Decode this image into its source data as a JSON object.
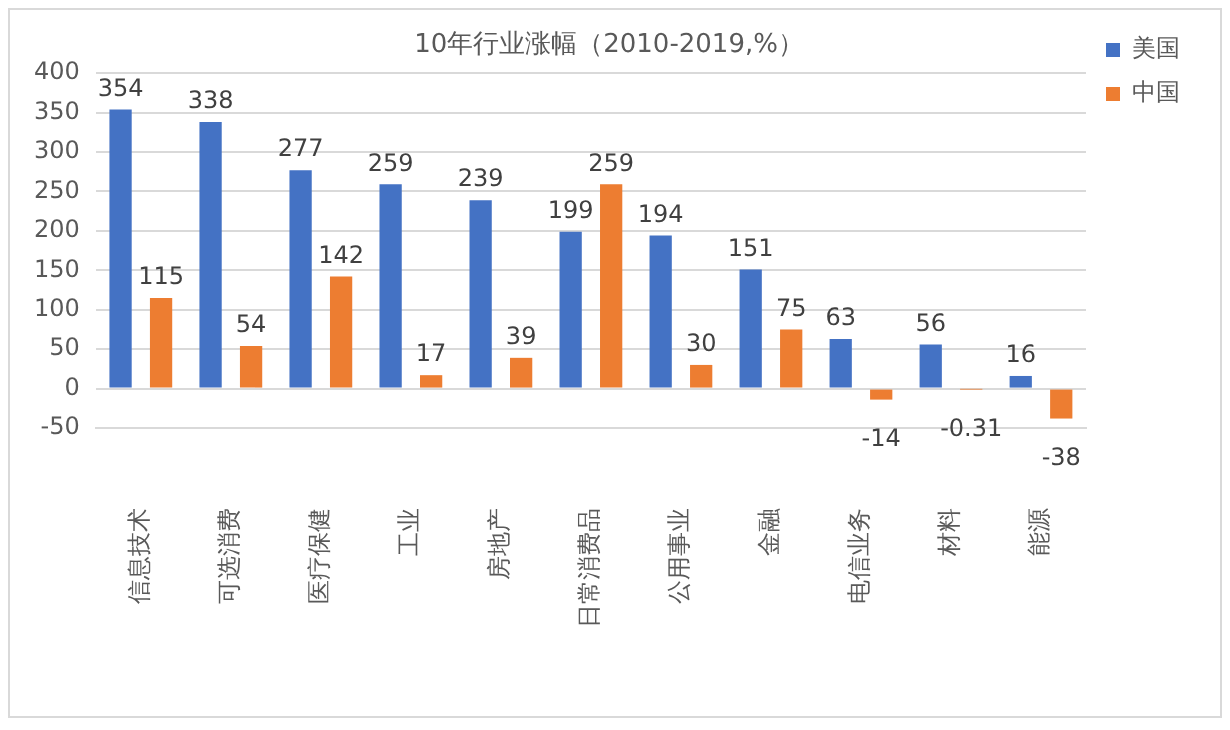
{
  "chart_data": {
    "type": "bar",
    "title": "10年行业涨幅（2010-2019,%）",
    "categories": [
      "信息技术",
      "可选消费",
      "医疗保健",
      "工业",
      "房地产",
      "日常消费品",
      "公用事业",
      "金融",
      "电信业务",
      "材料",
      "能源"
    ],
    "series": [
      {
        "name": "美国",
        "color": "#4472c4",
        "values": [
          354,
          338,
          277,
          259,
          239,
          199,
          194,
          151,
          63,
          56,
          16
        ]
      },
      {
        "name": "中国",
        "color": "#ed7d31",
        "values": [
          115,
          54,
          142,
          17,
          39,
          259,
          30,
          75,
          -14,
          -0.31,
          -38
        ]
      }
    ],
    "ylim": [
      -50,
      400
    ],
    "yticks": [
      -50,
      0,
      50,
      100,
      150,
      200,
      250,
      300,
      350,
      400
    ],
    "grid": "y",
    "legend": "top right",
    "data_labels": true
  }
}
